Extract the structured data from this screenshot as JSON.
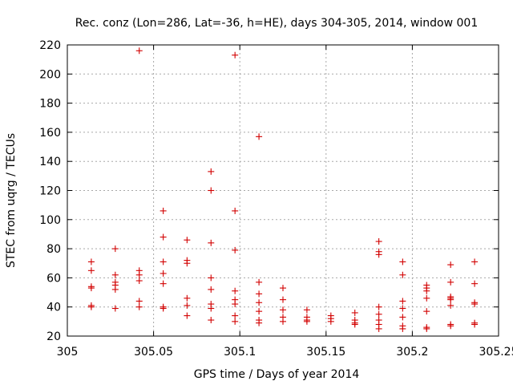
{
  "chart_data": {
    "type": "scatter",
    "title": "Rec. conz (Lon=286, Lat=-36, h=HE), days 304-305, 2014, window 001",
    "xlabel": "GPS time / Days of year 2014",
    "ylabel": "STEC from uqrg / TECUs",
    "xlim": [
      305,
      305.25
    ],
    "ylim": [
      20,
      220
    ],
    "xticks": [
      305,
      305.05,
      305.1,
      305.15,
      305.2,
      305.25
    ],
    "xtick_labels": [
      "305",
      "305.05",
      "305.1",
      "305.15",
      "305.2",
      "305.25"
    ],
    "yticks": [
      20,
      40,
      60,
      80,
      100,
      120,
      140,
      160,
      180,
      200,
      220
    ],
    "ytick_labels": [
      "20",
      "40",
      "60",
      "80",
      "100",
      "120",
      "140",
      "160",
      "180",
      "200",
      "220"
    ],
    "grid": true,
    "marker": "+",
    "marker_color": "#d20000",
    "series": [
      {
        "name": "STEC",
        "points": [
          [
            305.0139,
            71
          ],
          [
            305.0139,
            65
          ],
          [
            305.0139,
            54
          ],
          [
            305.0139,
            53
          ],
          [
            305.0139,
            41
          ],
          [
            305.0139,
            40
          ],
          [
            305.0278,
            80
          ],
          [
            305.0278,
            62
          ],
          [
            305.0278,
            57
          ],
          [
            305.0278,
            55
          ],
          [
            305.0278,
            52
          ],
          [
            305.0278,
            39
          ],
          [
            305.0417,
            216
          ],
          [
            305.0417,
            65
          ],
          [
            305.0417,
            62
          ],
          [
            305.0417,
            58
          ],
          [
            305.0417,
            44
          ],
          [
            305.0417,
            40
          ],
          [
            305.0556,
            106
          ],
          [
            305.0556,
            88
          ],
          [
            305.0556,
            71
          ],
          [
            305.0556,
            63
          ],
          [
            305.0556,
            56
          ],
          [
            305.0556,
            40
          ],
          [
            305.0556,
            39
          ],
          [
            305.0694,
            86
          ],
          [
            305.0694,
            72
          ],
          [
            305.0694,
            70
          ],
          [
            305.0694,
            46
          ],
          [
            305.0694,
            41
          ],
          [
            305.0694,
            34
          ],
          [
            305.0833,
            133
          ],
          [
            305.0833,
            120
          ],
          [
            305.0833,
            84
          ],
          [
            305.0833,
            60
          ],
          [
            305.0833,
            52
          ],
          [
            305.0833,
            42
          ],
          [
            305.0833,
            39
          ],
          [
            305.0833,
            31
          ],
          [
            305.0972,
            213
          ],
          [
            305.0972,
            106
          ],
          [
            305.0972,
            79
          ],
          [
            305.0972,
            51
          ],
          [
            305.0972,
            45
          ],
          [
            305.0972,
            42
          ],
          [
            305.0972,
            34
          ],
          [
            305.0972,
            30
          ],
          [
            305.1111,
            157
          ],
          [
            305.1111,
            57
          ],
          [
            305.1111,
            49
          ],
          [
            305.1111,
            43
          ],
          [
            305.1111,
            37
          ],
          [
            305.1111,
            31
          ],
          [
            305.1111,
            29
          ],
          [
            305.125,
            53
          ],
          [
            305.125,
            45
          ],
          [
            305.125,
            38
          ],
          [
            305.125,
            33
          ],
          [
            305.125,
            30
          ],
          [
            305.1389,
            38
          ],
          [
            305.1389,
            33
          ],
          [
            305.1389,
            31
          ],
          [
            305.1389,
            30
          ],
          [
            305.1528,
            34
          ],
          [
            305.1528,
            32
          ],
          [
            305.1528,
            30
          ],
          [
            305.1667,
            36
          ],
          [
            305.1667,
            31
          ],
          [
            305.1667,
            29
          ],
          [
            305.1667,
            28
          ],
          [
            305.1806,
            85
          ],
          [
            305.1806,
            78
          ],
          [
            305.1806,
            76
          ],
          [
            305.1806,
            40
          ],
          [
            305.1806,
            35
          ],
          [
            305.1806,
            31
          ],
          [
            305.1806,
            28
          ],
          [
            305.1806,
            25
          ],
          [
            305.1944,
            71
          ],
          [
            305.1944,
            62
          ],
          [
            305.1944,
            44
          ],
          [
            305.1944,
            39
          ],
          [
            305.1944,
            33
          ],
          [
            305.1944,
            27
          ],
          [
            305.1944,
            25
          ],
          [
            305.2083,
            55
          ],
          [
            305.2083,
            53
          ],
          [
            305.2083,
            51
          ],
          [
            305.2083,
            46
          ],
          [
            305.2083,
            37
          ],
          [
            305.2083,
            26
          ],
          [
            305.2083,
            25
          ],
          [
            305.2222,
            69
          ],
          [
            305.2222,
            57
          ],
          [
            305.2222,
            47
          ],
          [
            305.2222,
            46
          ],
          [
            305.2222,
            45
          ],
          [
            305.2222,
            41
          ],
          [
            305.2222,
            28
          ],
          [
            305.2222,
            27
          ],
          [
            305.2361,
            71
          ],
          [
            305.2361,
            56
          ],
          [
            305.2361,
            43
          ],
          [
            305.2361,
            42
          ],
          [
            305.2361,
            29
          ],
          [
            305.2361,
            28
          ]
        ]
      }
    ]
  }
}
